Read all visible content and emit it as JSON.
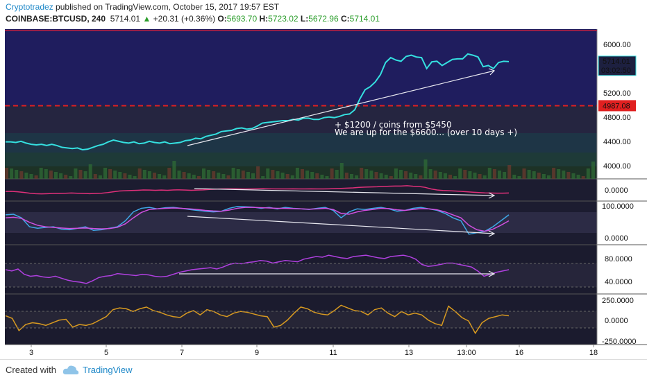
{
  "header": {
    "author": "Cryptotradez",
    "published_text": "published on TradingView.com, October 15, 2017 19:57 EST",
    "symbol": "COINBASE:BTCUSD, 240",
    "last": "5714.01",
    "change": "+20.31 (+0.36%)",
    "open_label": "O:",
    "open": "5693.70",
    "high_label": "H:",
    "high": "5723.02",
    "low_label": "L:",
    "low": "5672.96",
    "close_label": "C:",
    "close": "5714.01"
  },
  "footer": {
    "created_with": "Created with",
    "brand": "TradingView"
  },
  "colors": {
    "price_line": "#35e0e0",
    "rsi_pink": "#e0307a",
    "stoch_k": "#3fa8e8",
    "stoch_d": "#d050e0",
    "purple": "#b040e0",
    "orange": "#d89a20",
    "red_level": "#e02020",
    "arrow": "#e8e8f0"
  },
  "chart_data": {
    "type": "line",
    "x_ticks": [
      "3",
      "5",
      "7",
      "9",
      "11",
      "13",
      "13:00",
      "16",
      "18"
    ],
    "price_panel": {
      "y_ticks": [
        "6000.00",
        "5200.00",
        "4800.00",
        "4400.00",
        "4000.00"
      ],
      "ylim": [
        3780,
        6250
      ],
      "last_price_label": "5714.01",
      "countdown_label": "03:02:50",
      "level_label": "4987.08",
      "level": 4987.08,
      "annotation_line1": "+ $1200 / coins from $5450",
      "annotation_line2": "We are up for the $6600... (over 10 days +)",
      "series": [
        {
          "values": [
            4390,
            4390,
            4380,
            4400,
            4370,
            4350,
            4340,
            4350,
            4330,
            4350,
            4330,
            4300,
            4290,
            4280,
            4290,
            4260,
            4270,
            4300,
            4330,
            4350,
            4390,
            4420,
            4400,
            4380,
            4370,
            4390,
            4360,
            4370,
            4400,
            4380,
            4370,
            4390,
            4360,
            4370,
            4380,
            4410,
            4420,
            4450,
            4440,
            4480,
            4500,
            4520,
            4560,
            4570,
            4580,
            4610,
            4620,
            4600,
            4610,
            4650,
            4700,
            4710,
            4720,
            4730,
            4740,
            4740,
            4760,
            4750,
            4780,
            4780,
            4760,
            4760,
            4790,
            4800,
            4790,
            4810,
            4840,
            4850,
            4920,
            5100,
            5250,
            5300,
            5380,
            5500,
            5700,
            5780,
            5740,
            5720,
            5800,
            5820,
            5790,
            5780,
            5600,
            5710,
            5720,
            5650,
            5700,
            5750,
            5760,
            5760,
            5840,
            5820,
            5790,
            5630,
            5650,
            5600,
            5700,
            5720,
            5714
          ]
        }
      ]
    },
    "panel_rsi": {
      "y_ticks": [
        "0.0000"
      ],
      "series": [
        {
          "values": [
            0.3,
            0.32,
            0.28,
            0.22,
            0.15,
            0.1,
            0.08,
            0.1,
            0.12,
            0.12,
            0.14,
            0.16,
            0.14,
            0.12,
            0.1,
            0.12,
            0.14,
            0.2,
            0.28,
            0.35,
            0.38,
            0.4,
            0.42,
            0.45,
            0.44,
            0.42,
            0.44,
            0.42,
            0.45,
            0.46,
            0.44,
            0.42,
            0.44,
            0.46,
            0.5,
            0.52,
            0.55,
            0.56,
            0.56,
            0.55,
            0.54,
            0.55,
            0.56,
            0.57,
            0.56,
            0.55,
            0.55,
            0.55,
            0.56,
            0.55,
            0.55,
            0.56,
            0.55,
            0.55,
            0.56,
            0.58,
            0.6,
            0.62,
            0.65,
            0.7,
            0.72,
            0.74,
            0.75,
            0.78,
            0.8,
            0.82,
            0.82,
            0.85,
            0.8,
            0.78,
            0.7,
            0.55,
            0.45,
            0.4,
            0.38,
            0.35,
            0.32,
            0.28,
            0.24,
            0.2,
            0.17,
            0.16,
            0.15,
            0.15,
            0.16
          ]
        }
      ]
    },
    "panel_stoch": {
      "y_ticks": [
        "100.0000",
        "0.0000"
      ],
      "series": [
        {
          "values": [
            0.7,
            0.72,
            0.6,
            0.3,
            0.25,
            0.28,
            0.3,
            0.22,
            0.2,
            0.25,
            0.3,
            0.18,
            0.2,
            0.25,
            0.3,
            0.5,
            0.8,
            0.92,
            0.95,
            0.9,
            0.94,
            0.95,
            0.92,
            0.88,
            0.85,
            0.82,
            0.8,
            0.82,
            0.92,
            0.98,
            0.97,
            0.96,
            0.92,
            0.95,
            0.9,
            0.95,
            0.92,
            0.9,
            0.88,
            0.92,
            0.95,
            0.85,
            0.6,
            0.8,
            0.9,
            0.88,
            0.92,
            0.95,
            0.9,
            0.82,
            0.85,
            0.92,
            0.95,
            0.9,
            0.85,
            0.75,
            0.6,
            0.5,
            0.05,
            0.1,
            0.15,
            0.3,
            0.5,
            0.7
          ]
        },
        {
          "values": [
            0.6,
            0.62,
            0.58,
            0.45,
            0.35,
            0.3,
            0.28,
            0.26,
            0.24,
            0.25,
            0.26,
            0.24,
            0.23,
            0.24,
            0.28,
            0.4,
            0.6,
            0.78,
            0.88,
            0.9,
            0.92,
            0.93,
            0.92,
            0.9,
            0.88,
            0.85,
            0.83,
            0.82,
            0.86,
            0.92,
            0.95,
            0.95,
            0.94,
            0.93,
            0.92,
            0.92,
            0.91,
            0.9,
            0.89,
            0.9,
            0.92,
            0.88,
            0.75,
            0.72,
            0.8,
            0.85,
            0.88,
            0.92,
            0.91,
            0.87,
            0.85,
            0.88,
            0.91,
            0.9,
            0.87,
            0.8,
            0.7,
            0.6,
            0.35,
            0.2,
            0.15,
            0.22,
            0.35,
            0.5
          ]
        }
      ]
    },
    "panel_purple": {
      "y_ticks": [
        "80.0000",
        "40.0000"
      ],
      "series": [
        {
          "values": [
            62,
            60,
            63,
            55,
            52,
            53,
            51,
            50,
            52,
            49,
            46,
            44,
            43,
            41,
            45,
            50,
            52,
            53,
            56,
            55,
            54,
            53,
            55,
            54,
            52,
            51,
            52,
            55,
            58,
            60,
            62,
            63,
            64,
            65,
            63,
            66,
            70,
            72,
            71,
            73,
            74,
            76,
            75,
            72,
            74,
            76,
            75,
            74,
            78,
            80,
            82,
            81,
            84,
            82,
            80,
            79,
            82,
            83,
            84,
            82,
            80,
            79,
            82,
            83,
            84,
            82,
            78,
            70,
            67,
            68,
            70,
            72,
            72,
            70,
            68,
            66,
            60,
            52,
            55,
            58,
            60,
            62
          ]
        }
      ]
    },
    "panel_cci": {
      "y_ticks": [
        "250.0000",
        "0.0000",
        "-250.0000"
      ],
      "series": [
        {
          "values": [
            50,
            20,
            -120,
            -50,
            -30,
            -40,
            -60,
            -30,
            0,
            10,
            -80,
            -50,
            -60,
            -40,
            0,
            40,
            120,
            140,
            130,
            100,
            130,
            150,
            110,
            90,
            60,
            40,
            30,
            80,
            110,
            60,
            120,
            100,
            60,
            40,
            80,
            100,
            90,
            70,
            50,
            40,
            -80,
            -60,
            0,
            80,
            150,
            130,
            90,
            70,
            60,
            110,
            170,
            140,
            110,
            100,
            60,
            120,
            140,
            80,
            40,
            100,
            60,
            80,
            60,
            0,
            -40,
            -60,
            160,
            100,
            30,
            -10,
            -150,
            -30,
            20,
            40,
            60,
            50
          ]
        }
      ]
    }
  }
}
